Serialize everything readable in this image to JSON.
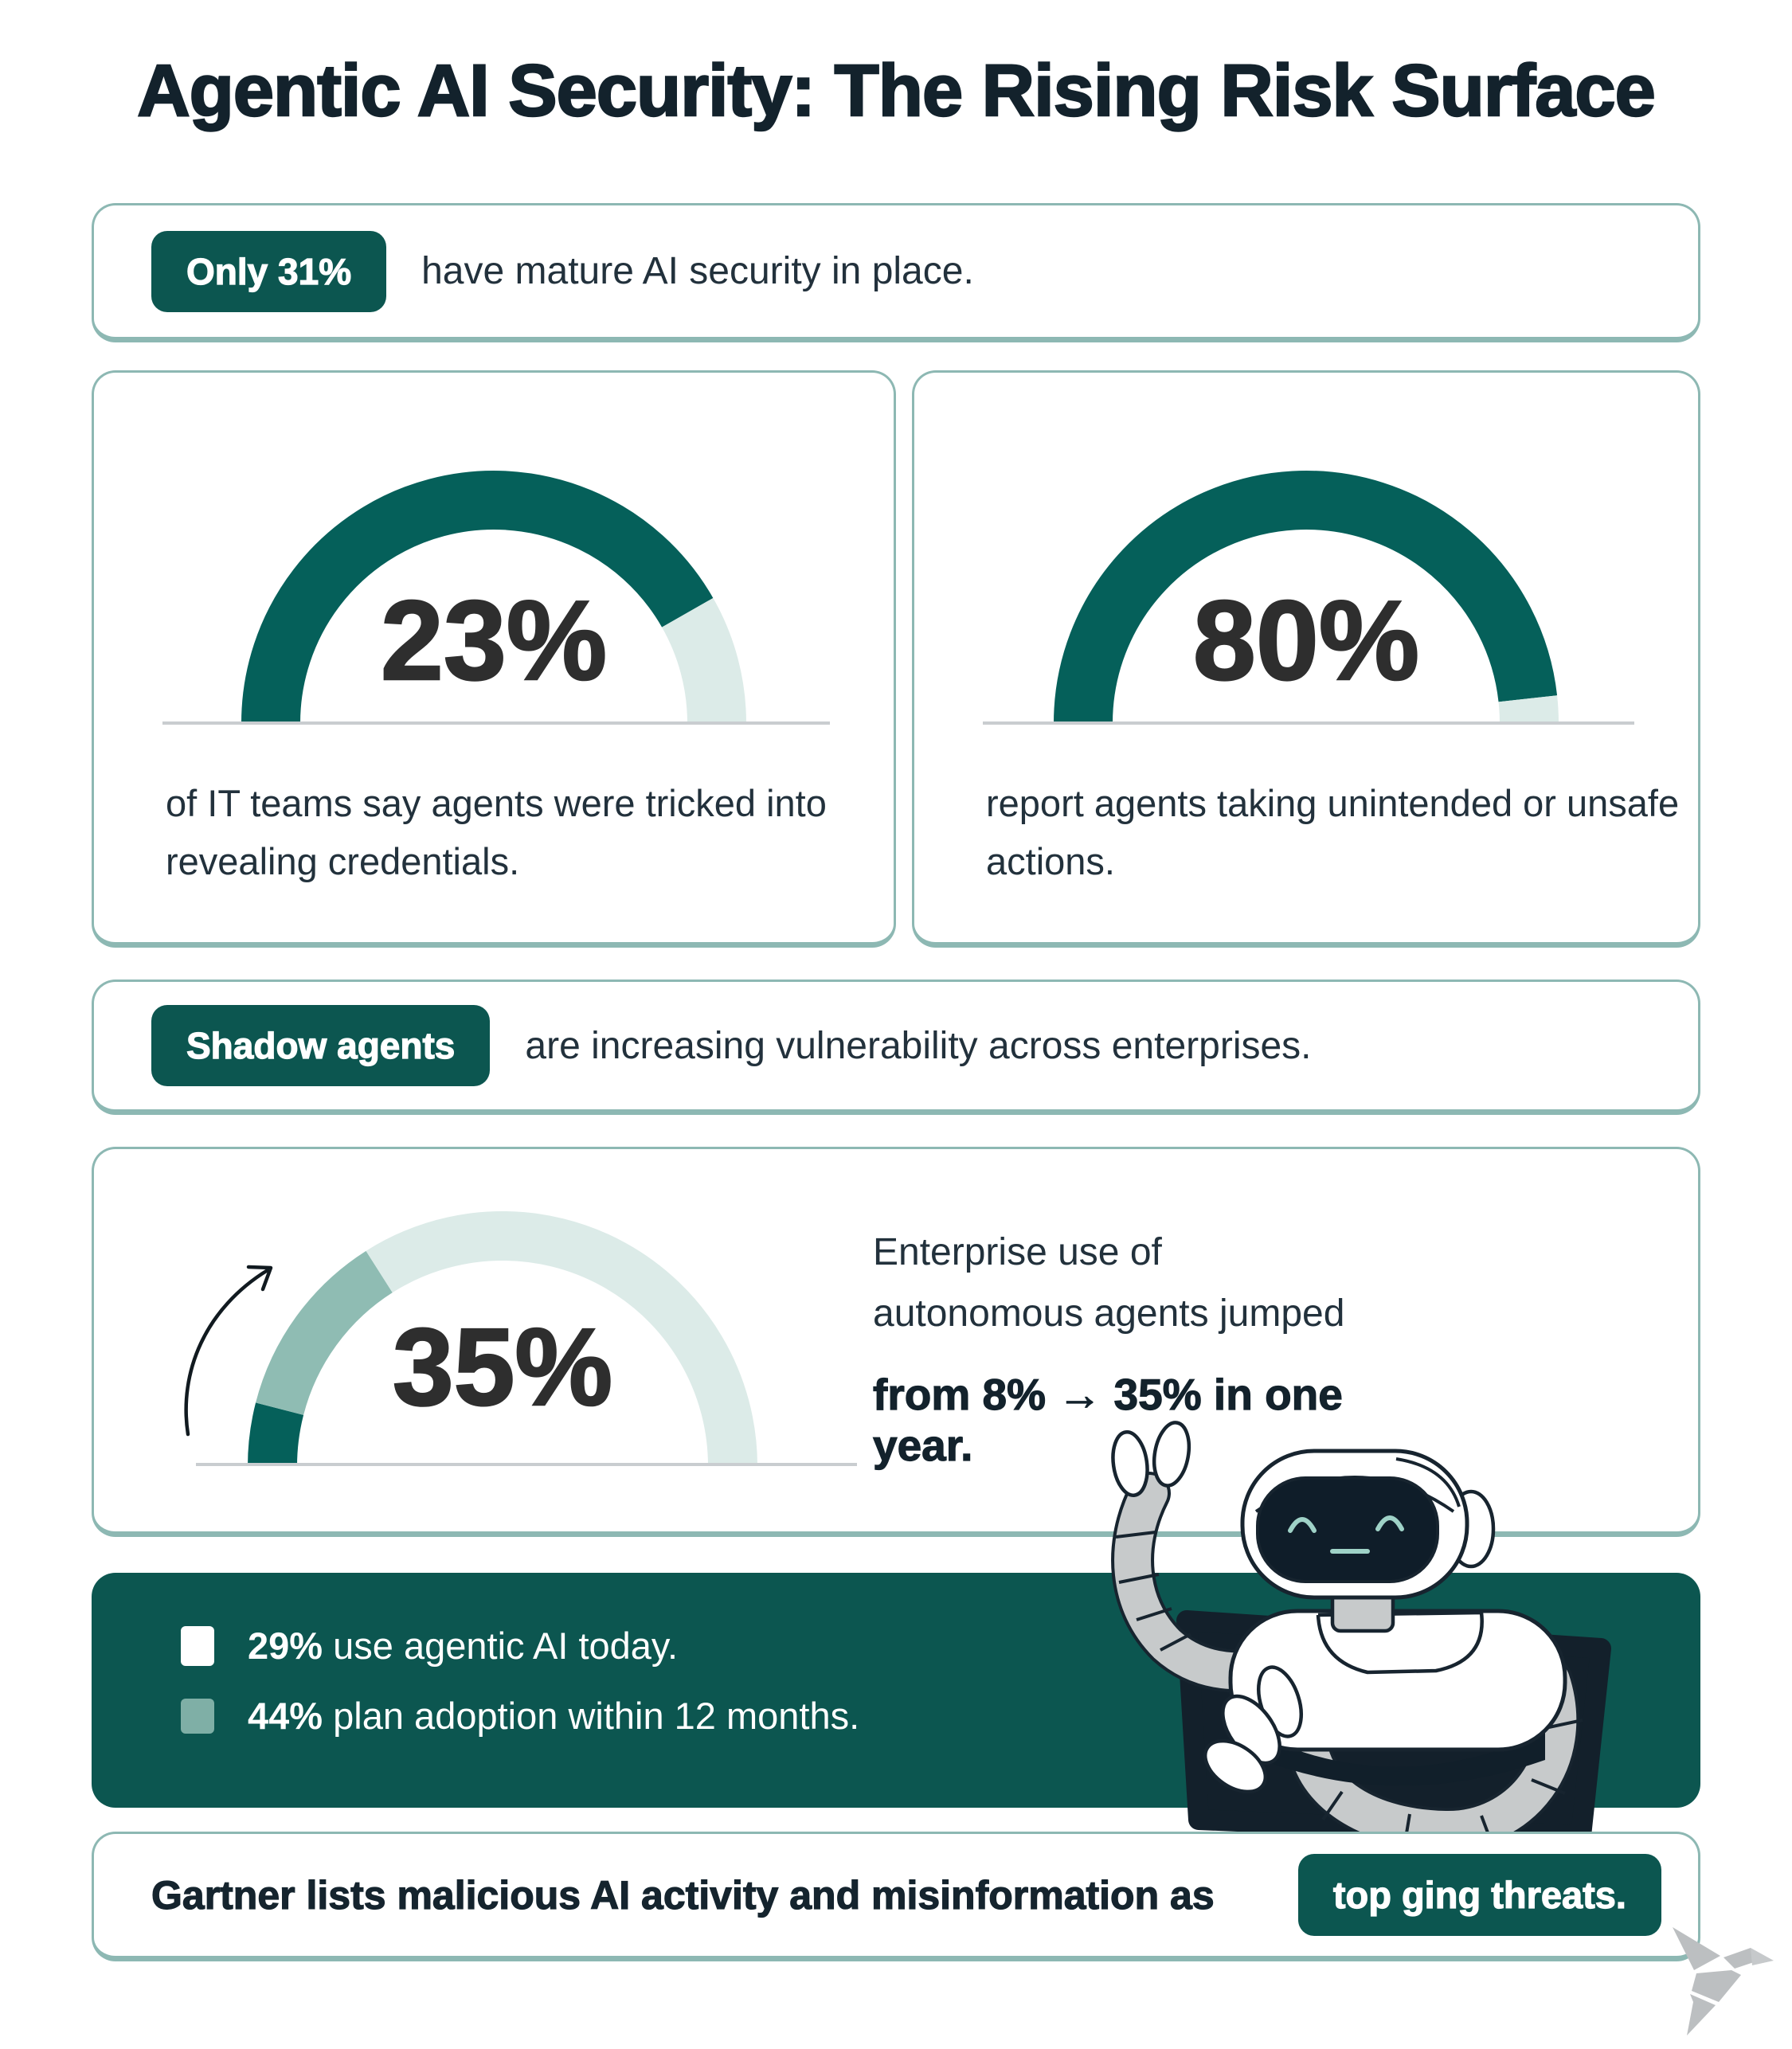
{
  "title": "Agentic AI Security: The Rising Risk Surface",
  "banner1": {
    "badge": "Only 31%",
    "text": "have mature AI security in place."
  },
  "cards": [
    {
      "value": "23%",
      "caption": "of IT teams say agents were tricked into revealing credentials."
    },
    {
      "value": "80%",
      "caption": "report agents taking unintended or unsafe actions."
    }
  ],
  "banner2": {
    "badge": "Shadow agents",
    "text": "are increasing vulnerability across enterprises."
  },
  "growth": {
    "value": "35%",
    "p1": "Enterprise use of autonomous agents jumped",
    "p2": "from 8% → 35% in one year."
  },
  "legend": {
    "items": [
      {
        "pct": "29%",
        "text": " use agentic AI today.",
        "swatch_color": "#ffffff"
      },
      {
        "pct": "44%",
        "text": " plan adoption within 12 months.",
        "swatch_color": "#7fafa6"
      }
    ]
  },
  "bottom": {
    "text": "Gartner lists malicious AI activity and misinformation as",
    "badge": "top ging threats."
  },
  "colors": {
    "teal_dark": "#0c5650",
    "arc_teal": "#05605a",
    "sage": "#8fbcb3",
    "mint": "#dcebe8",
    "text_dark": "#22313c",
    "title_dark": "#13222c",
    "border_teal": "#8db8b3",
    "baseline_gray": "#c9cdd0",
    "bird_gray": "#bcbfc1"
  },
  "chart_data": [
    {
      "type": "gauge",
      "title": "IT teams saying agents were tricked into revealing credentials",
      "value": 23,
      "unit": "%",
      "label": "23%",
      "range": [
        0,
        100
      ],
      "shape": "semicircle",
      "segments": [
        {
          "color": "#05605a",
          "from": 0.0,
          "to": 0.835
        },
        {
          "color": "#dcebe8",
          "from": 0.835,
          "to": 1.0
        }
      ]
    },
    {
      "type": "gauge",
      "title": "Report agents taking unintended or unsafe actions",
      "value": 80,
      "unit": "%",
      "label": "80%",
      "range": [
        0,
        100
      ],
      "shape": "semicircle",
      "segments": [
        {
          "color": "#05605a",
          "from": 0.0,
          "to": 0.965
        },
        {
          "color": "#dcebe8",
          "from": 0.965,
          "to": 1.0
        }
      ]
    },
    {
      "type": "gauge",
      "title": "Enterprise use of autonomous agents: from 8% to 35% in one year",
      "value": 35,
      "unit": "%",
      "label": "35%",
      "range": [
        0,
        100
      ],
      "shape": "semicircle",
      "segments": [
        {
          "color": "#05605a",
          "from": 0.0,
          "to": 0.08
        },
        {
          "color": "#8fbcb3",
          "from": 0.08,
          "to": 0.32
        },
        {
          "color": "#dcebe8",
          "from": 0.32,
          "to": 1.0
        }
      ]
    },
    {
      "type": "legend-stats",
      "items": [
        {
          "value": 29,
          "label": "29% use agentic AI today.",
          "color": "#ffffff"
        },
        {
          "value": 44,
          "label": "44% plan adoption within 12 months.",
          "color": "#7fafa6"
        }
      ]
    }
  ]
}
